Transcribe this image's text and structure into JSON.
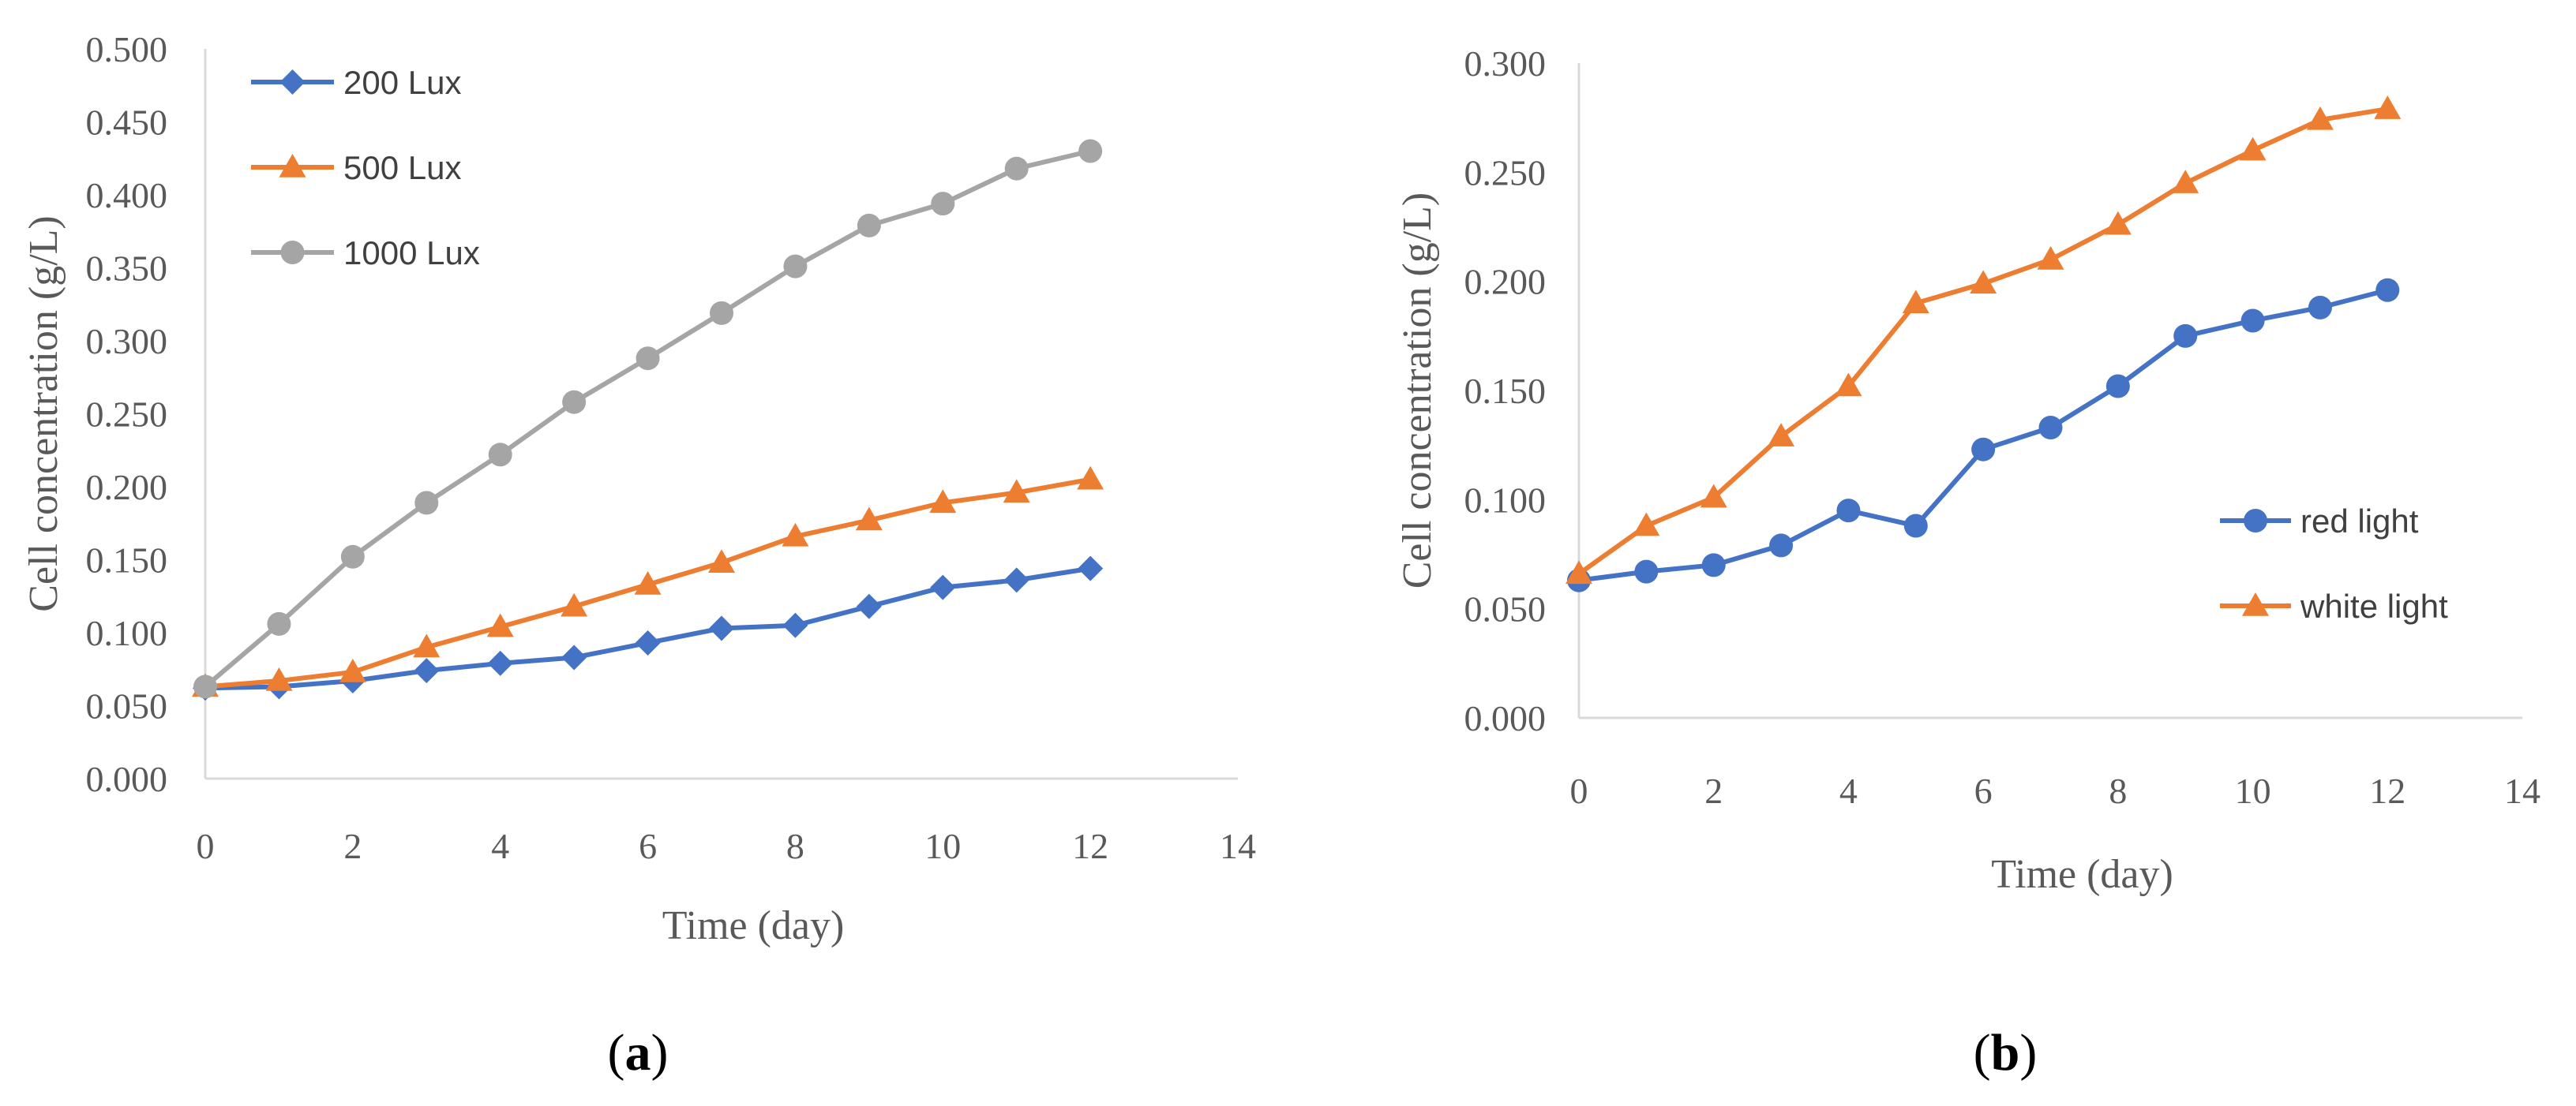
{
  "chart_data": [
    {
      "type": "line",
      "panel_label": "a",
      "xlabel": "Time (day)",
      "ylabel": "Cell concentration (g/L)",
      "xlim": [
        0,
        14
      ],
      "ylim": [
        0,
        0.5
      ],
      "x_ticks": [
        "0",
        "2",
        "4",
        "6",
        "8",
        "10",
        "12",
        "14"
      ],
      "y_ticks": [
        "0.000",
        "0.050",
        "0.100",
        "0.150",
        "0.200",
        "0.250",
        "0.300",
        "0.350",
        "0.400",
        "0.450",
        "0.500"
      ],
      "grid": false,
      "legend_position": "top-left",
      "x": [
        0,
        1,
        2,
        3,
        4,
        5,
        6,
        7,
        8,
        9,
        10,
        11,
        12
      ],
      "series": [
        {
          "name": "200 Lux",
          "color": "#4472C4",
          "marker": "diamond",
          "values": [
            0.062,
            0.063,
            0.067,
            0.074,
            0.079,
            0.083,
            0.093,
            0.103,
            0.105,
            0.118,
            0.131,
            0.136,
            0.144
          ]
        },
        {
          "name": "500 Lux",
          "color": "#ED7D31",
          "marker": "triangle",
          "values": [
            0.063,
            0.067,
            0.073,
            0.09,
            0.104,
            0.118,
            0.133,
            0.148,
            0.166,
            0.177,
            0.189,
            0.196,
            0.205
          ]
        },
        {
          "name": "1000 Lux",
          "color": "#A5A5A5",
          "marker": "circle",
          "values": [
            0.063,
            0.106,
            0.152,
            0.189,
            0.222,
            0.258,
            0.288,
            0.319,
            0.351,
            0.379,
            0.394,
            0.418,
            0.43
          ]
        }
      ]
    },
    {
      "type": "line",
      "panel_label": "b",
      "xlabel": "Time (day)",
      "ylabel": "Cell concentration (g/L)",
      "xlim": [
        0,
        14
      ],
      "ylim": [
        0,
        0.3
      ],
      "x_ticks": [
        "0",
        "2",
        "4",
        "6",
        "8",
        "10",
        "12",
        "14"
      ],
      "y_ticks": [
        "0.000",
        "0.050",
        "0.100",
        "0.150",
        "0.200",
        "0.250",
        "0.300"
      ],
      "grid": false,
      "legend_position": "right",
      "x": [
        0,
        1,
        2,
        3,
        4,
        5,
        6,
        7,
        8,
        9,
        10,
        11,
        12
      ],
      "series": [
        {
          "name": "red light",
          "color": "#4472C4",
          "marker": "circle",
          "values": [
            0.063,
            0.067,
            0.07,
            0.079,
            0.095,
            0.088,
            0.123,
            0.133,
            0.152,
            0.175,
            0.182,
            0.188,
            0.196
          ]
        },
        {
          "name": "white light",
          "color": "#ED7D31",
          "marker": "triangle",
          "values": [
            0.066,
            0.088,
            0.101,
            0.129,
            0.152,
            0.19,
            0.199,
            0.21,
            0.226,
            0.245,
            0.26,
            0.274,
            0.279
          ]
        }
      ]
    }
  ]
}
